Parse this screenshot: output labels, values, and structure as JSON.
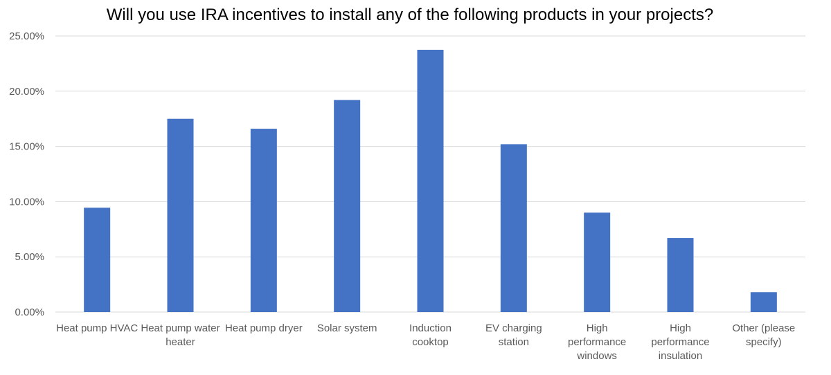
{
  "chart_data": {
    "type": "bar",
    "title": "Will you use IRA incentives to install any of the following products in your projects?",
    "xlabel": "",
    "ylabel": "",
    "categories": [
      "Heat pump HVAC",
      "Heat pump water heater",
      "Heat pump dryer",
      "Solar system",
      "Induction cooktop",
      "EV charging station",
      "High performance windows",
      "High performance insulation",
      "Other (please specify)"
    ],
    "series": [
      {
        "values": [
          0.0945,
          0.175,
          0.166,
          0.192,
          0.2375,
          0.152,
          0.09,
          0.067,
          0.018
        ]
      }
    ],
    "ylim": [
      0,
      0.25
    ],
    "yticks": [
      0,
      0.05,
      0.1,
      0.15,
      0.2,
      0.25
    ],
    "ytick_labels": [
      "0.00%",
      "5.00%",
      "10.00%",
      "15.00%",
      "20.00%",
      "25.00%"
    ],
    "grid": true,
    "legend": "none",
    "colors": {
      "bar": "#4472C4",
      "grid": "#D9D9D9",
      "axis_text": "#595959",
      "title": "#000000"
    }
  }
}
